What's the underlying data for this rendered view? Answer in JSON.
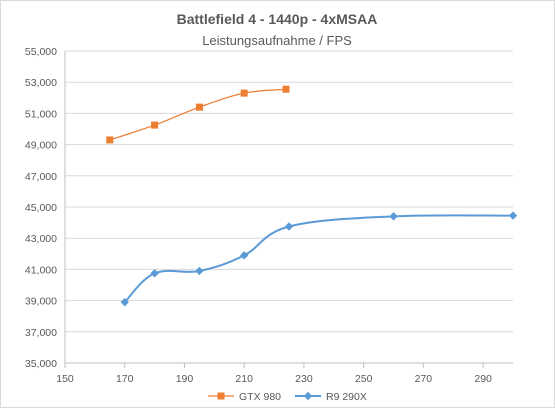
{
  "chart_data": {
    "type": "line",
    "title": "Battlefield 4 - 1440p - 4xMSAA",
    "subtitle": "Leistungsaufnahme / FPS",
    "xlim": [
      150,
      300
    ],
    "ylim": [
      35000,
      55000
    ],
    "x_ticks": [
      150,
      170,
      190,
      210,
      230,
      250,
      270,
      290
    ],
    "y_ticks": [
      35000,
      37000,
      39000,
      41000,
      43000,
      45000,
      47000,
      49000,
      51000,
      53000,
      55000
    ],
    "y_tick_labels": [
      "35,000",
      "37,000",
      "39,000",
      "41,000",
      "43,000",
      "45,000",
      "47,000",
      "49,000",
      "51,000",
      "53,000",
      "55,000"
    ],
    "grid": "horizontal",
    "legend_position": "bottom",
    "series": [
      {
        "name": "GTX 980",
        "color": "#ed7d31",
        "marker": "square",
        "points": [
          [
            165,
            49.3
          ],
          [
            180,
            50.25
          ],
          [
            195,
            51.4
          ],
          [
            210,
            52.3
          ],
          [
            224,
            52.55
          ]
        ]
      },
      {
        "name": "R9 290X",
        "color": "#5b9bd5",
        "marker": "diamond",
        "points": [
          [
            170,
            38.9
          ],
          [
            180,
            40.75
          ],
          [
            195,
            40.9
          ],
          [
            210,
            41.9
          ],
          [
            225,
            43.75
          ],
          [
            260,
            44.4
          ],
          [
            300,
            44.45
          ]
        ]
      }
    ]
  }
}
